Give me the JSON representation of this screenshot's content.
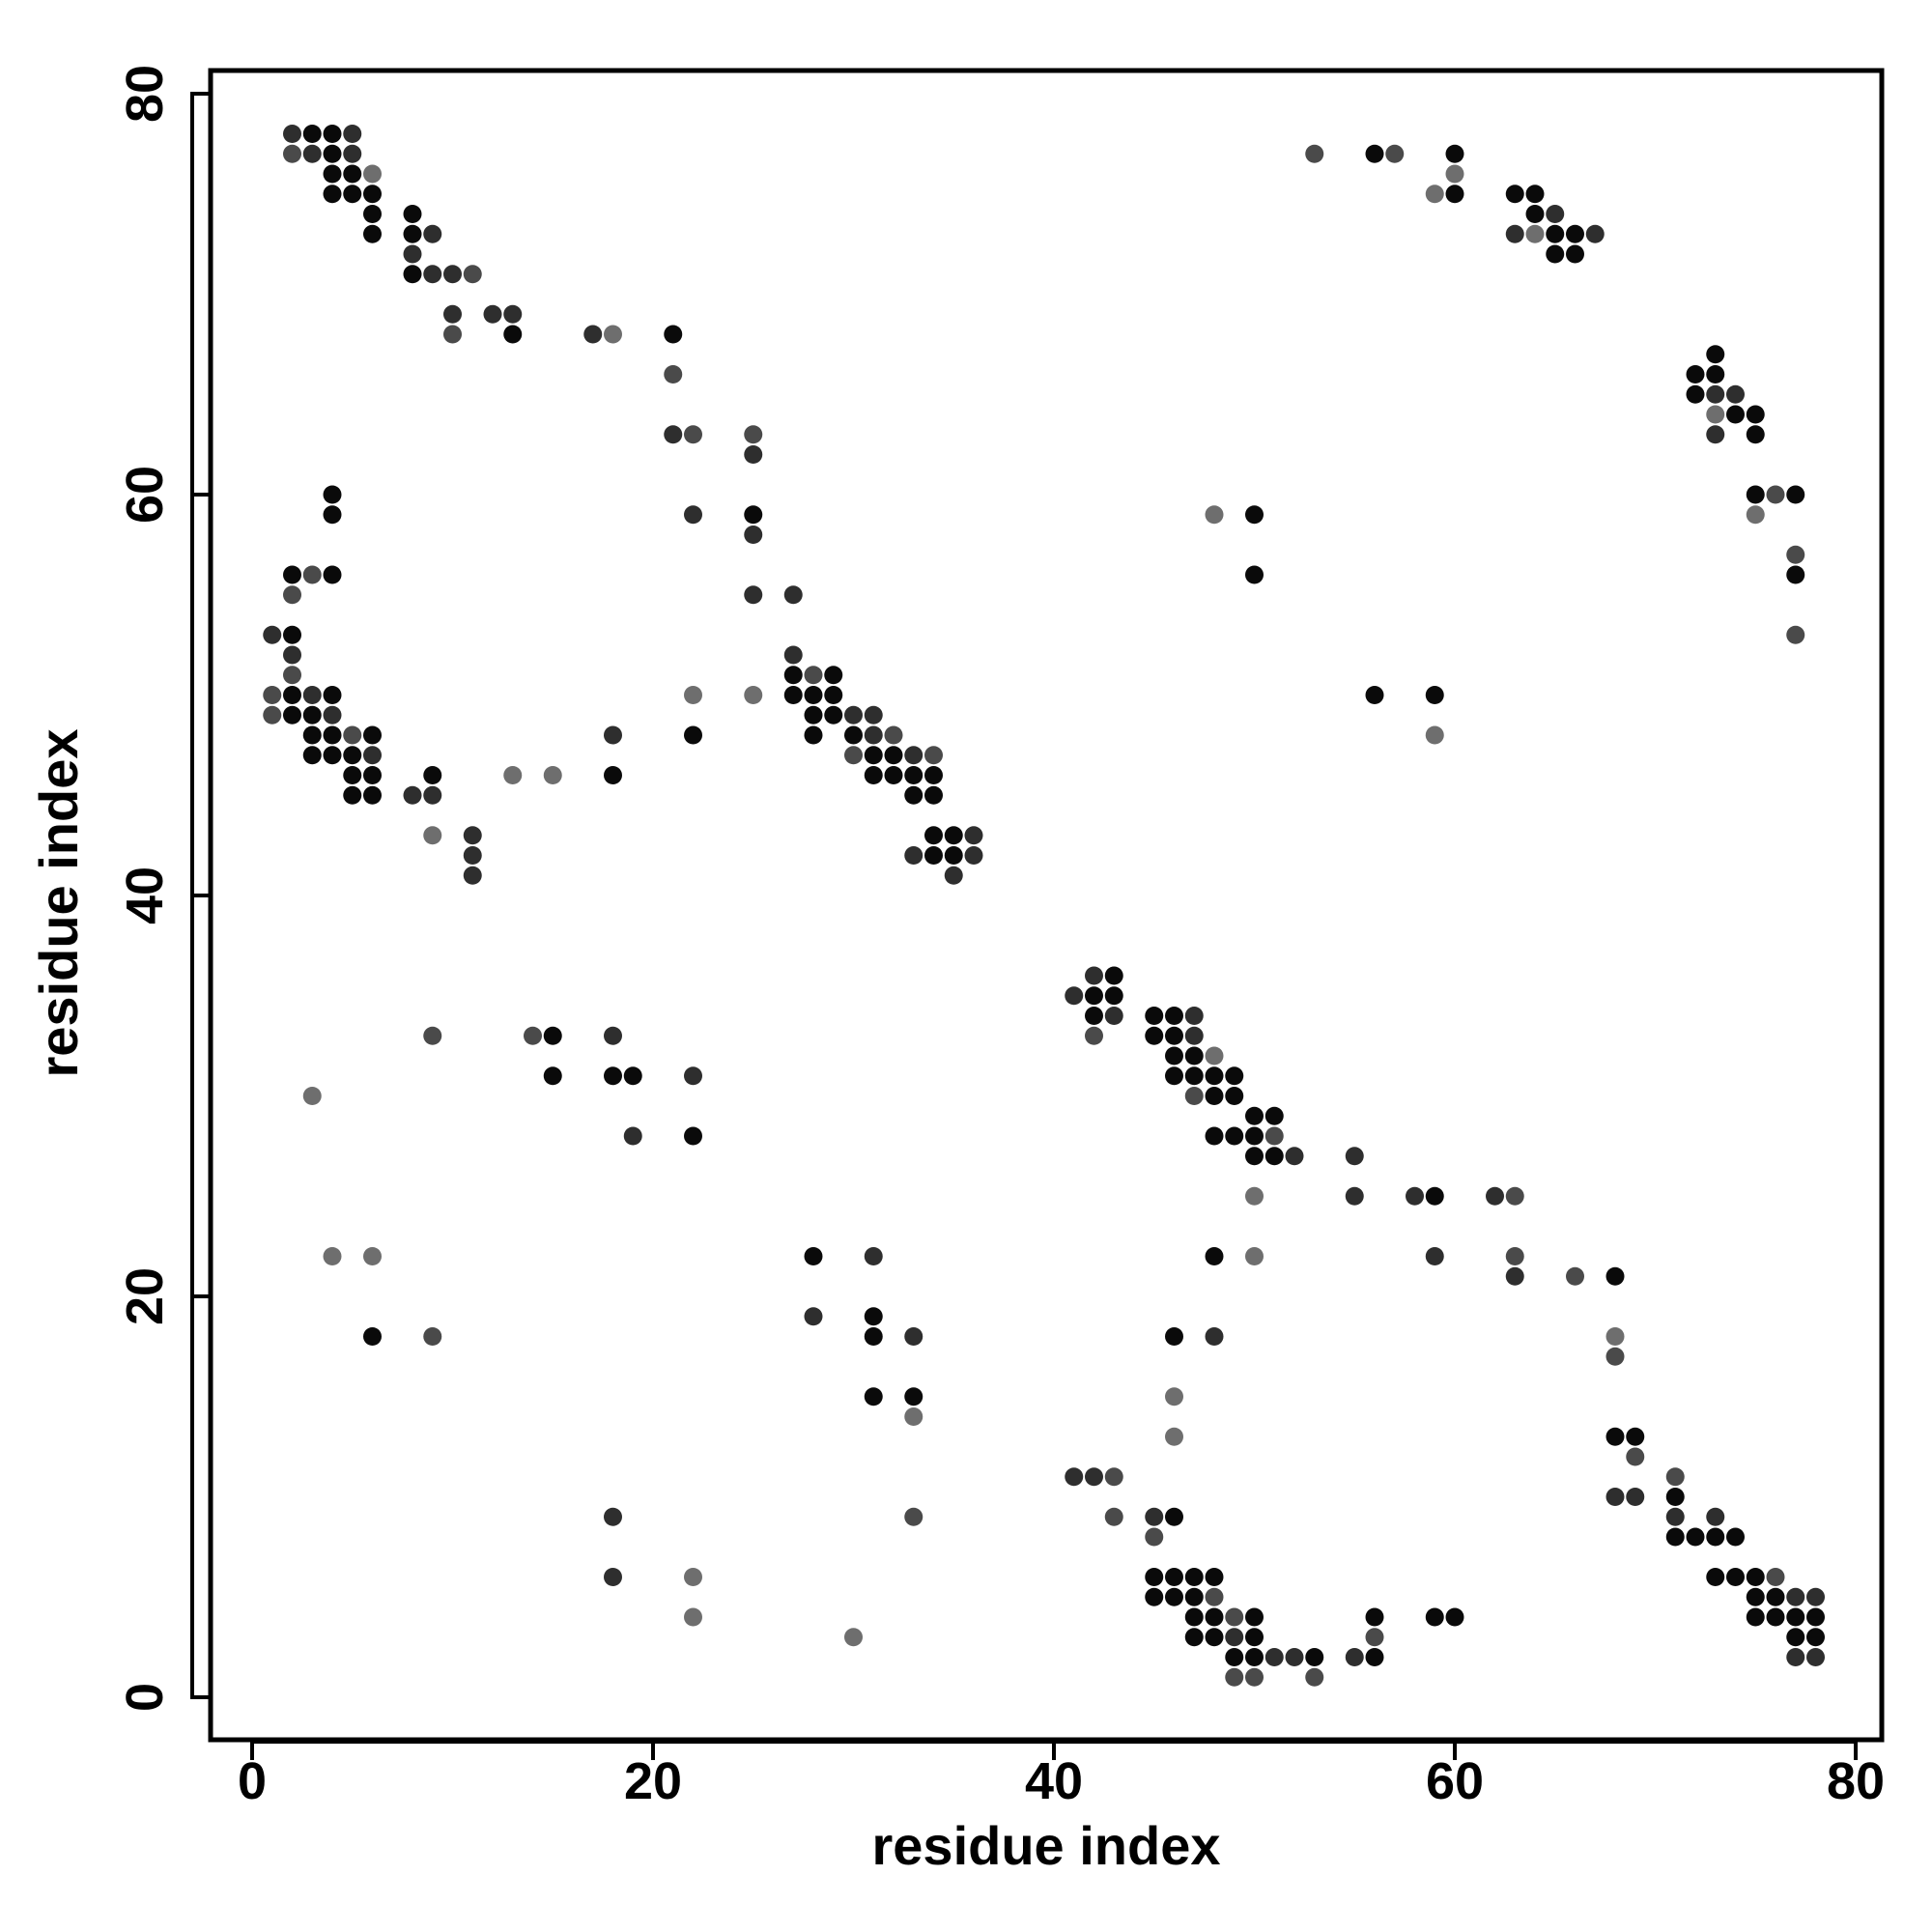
{
  "chart_data": {
    "type": "scatter",
    "xlabel": "residue index",
    "ylabel": "residue index",
    "xlim": [
      -2,
      81
    ],
    "ylim": [
      -2,
      81
    ],
    "x_ticks": [
      0,
      20,
      40,
      60,
      80
    ],
    "y_ticks": [
      0,
      20,
      40,
      60,
      80
    ],
    "x_tick_labels": [
      "0",
      "20",
      "40",
      "60",
      "80"
    ],
    "y_tick_labels": [
      "0",
      "20",
      "40",
      "60",
      "80"
    ],
    "grid": false,
    "legend": "none",
    "marker_color_scale": "grayscale (black = strong contact, gray = weak contact)",
    "contacts": [
      [
        2,
        78,
        1
      ],
      [
        3,
        78,
        0
      ],
      [
        4,
        78,
        0
      ],
      [
        5,
        78,
        1
      ],
      [
        2,
        77,
        2
      ],
      [
        3,
        77,
        1
      ],
      [
        4,
        77,
        0
      ],
      [
        5,
        77,
        1
      ],
      [
        4,
        76,
        0
      ],
      [
        5,
        76,
        0
      ],
      [
        6,
        76,
        3
      ],
      [
        4,
        75,
        0
      ],
      [
        5,
        75,
        0
      ],
      [
        6,
        75,
        0
      ],
      [
        6,
        74,
        0
      ],
      [
        6,
        73,
        0
      ],
      [
        8,
        74,
        0
      ],
      [
        8,
        73,
        0
      ],
      [
        9,
        73,
        1
      ],
      [
        8,
        72,
        1
      ],
      [
        8,
        71,
        0
      ],
      [
        9,
        71,
        1
      ],
      [
        10,
        71,
        1
      ],
      [
        11,
        71,
        2
      ],
      [
        10,
        69,
        1
      ],
      [
        12,
        69,
        1
      ],
      [
        13,
        69,
        1
      ],
      [
        10,
        68,
        2
      ],
      [
        13,
        68,
        0
      ],
      [
        17,
        68,
        1
      ],
      [
        18,
        68,
        3
      ],
      [
        21,
        68,
        0
      ],
      [
        21,
        66,
        2
      ],
      [
        21,
        63,
        1
      ],
      [
        22,
        63,
        2
      ],
      [
        22,
        59,
        1
      ],
      [
        25,
        63,
        2
      ],
      [
        25,
        62,
        1
      ],
      [
        25,
        59,
        0
      ],
      [
        25,
        58,
        1
      ],
      [
        25,
        55,
        1
      ],
      [
        27,
        55,
        1
      ],
      [
        4,
        60,
        0
      ],
      [
        4,
        59,
        0
      ],
      [
        2,
        56,
        0
      ],
      [
        3,
        56,
        2
      ],
      [
        4,
        56,
        0
      ],
      [
        2,
        55,
        2
      ],
      [
        1,
        53,
        1
      ],
      [
        2,
        53,
        0
      ],
      [
        2,
        52,
        1
      ],
      [
        2,
        51,
        2
      ],
      [
        1,
        50,
        2
      ],
      [
        2,
        50,
        0
      ],
      [
        3,
        50,
        1
      ],
      [
        4,
        50,
        0
      ],
      [
        1,
        49,
        2
      ],
      [
        2,
        49,
        0
      ],
      [
        3,
        49,
        0
      ],
      [
        4,
        49,
        1
      ],
      [
        3,
        48,
        0
      ],
      [
        4,
        48,
        0
      ],
      [
        5,
        48,
        2
      ],
      [
        6,
        48,
        0
      ],
      [
        3,
        47,
        0
      ],
      [
        4,
        47,
        0
      ],
      [
        5,
        47,
        0
      ],
      [
        6,
        47,
        1
      ],
      [
        5,
        46,
        0
      ],
      [
        6,
        46,
        0
      ],
      [
        5,
        45,
        0
      ],
      [
        6,
        45,
        0
      ],
      [
        8,
        45,
        1
      ],
      [
        9,
        45,
        1
      ],
      [
        9,
        46,
        0
      ],
      [
        9,
        43,
        3
      ],
      [
        11,
        43,
        1
      ],
      [
        11,
        42,
        1
      ],
      [
        11,
        41,
        1
      ],
      [
        13,
        46,
        3
      ],
      [
        15,
        46,
        3
      ],
      [
        18,
        48,
        1
      ],
      [
        18,
        46,
        0
      ],
      [
        22,
        50,
        3
      ],
      [
        22,
        48,
        0
      ],
      [
        25,
        50,
        3
      ],
      [
        27,
        52,
        1
      ],
      [
        27,
        51,
        0
      ],
      [
        28,
        51,
        2
      ],
      [
        29,
        51,
        0
      ],
      [
        27,
        50,
        0
      ],
      [
        28,
        50,
        0
      ],
      [
        29,
        50,
        0
      ],
      [
        28,
        49,
        0
      ],
      [
        29,
        49,
        0
      ],
      [
        30,
        49,
        1
      ],
      [
        31,
        49,
        1
      ],
      [
        28,
        48,
        0
      ],
      [
        30,
        48,
        0
      ],
      [
        31,
        48,
        1
      ],
      [
        32,
        48,
        2
      ],
      [
        30,
        47,
        2
      ],
      [
        31,
        47,
        0
      ],
      [
        32,
        47,
        0
      ],
      [
        33,
        47,
        1
      ],
      [
        34,
        47,
        2
      ],
      [
        31,
        46,
        0
      ],
      [
        32,
        46,
        0
      ],
      [
        33,
        46,
        0
      ],
      [
        34,
        46,
        0
      ],
      [
        33,
        45,
        0
      ],
      [
        34,
        45,
        0
      ],
      [
        34,
        43,
        0
      ],
      [
        35,
        43,
        0
      ],
      [
        36,
        43,
        1
      ],
      [
        33,
        42,
        1
      ],
      [
        34,
        42,
        0
      ],
      [
        35,
        42,
        0
      ],
      [
        36,
        42,
        1
      ],
      [
        35,
        41,
        1
      ],
      [
        53,
        77,
        2
      ],
      [
        56,
        77,
        0
      ],
      [
        57,
        77,
        2
      ],
      [
        60,
        77,
        0
      ],
      [
        59,
        75,
        3
      ],
      [
        60,
        76,
        3
      ],
      [
        60,
        75,
        0
      ],
      [
        63,
        75,
        0
      ],
      [
        64,
        75,
        0
      ],
      [
        64,
        74,
        0
      ],
      [
        65,
        74,
        1
      ],
      [
        63,
        73,
        1
      ],
      [
        64,
        73,
        3
      ],
      [
        65,
        73,
        0
      ],
      [
        66,
        73,
        0
      ],
      [
        67,
        73,
        1
      ],
      [
        65,
        72,
        0
      ],
      [
        66,
        72,
        0
      ],
      [
        73,
        67,
        0
      ],
      [
        72,
        66,
        0
      ],
      [
        73,
        66,
        0
      ],
      [
        72,
        65,
        0
      ],
      [
        73,
        65,
        1
      ],
      [
        74,
        65,
        1
      ],
      [
        73,
        64,
        3
      ],
      [
        74,
        64,
        0
      ],
      [
        75,
        64,
        0
      ],
      [
        73,
        63,
        1
      ],
      [
        75,
        63,
        0
      ],
      [
        75,
        60,
        0
      ],
      [
        76,
        60,
        2
      ],
      [
        77,
        60,
        0
      ],
      [
        75,
        59,
        3
      ],
      [
        77,
        57,
        2
      ],
      [
        77,
        56,
        0
      ],
      [
        77,
        53,
        2
      ],
      [
        48,
        59,
        3
      ],
      [
        50,
        59,
        0
      ],
      [
        50,
        56,
        0
      ],
      [
        56,
        50,
        0
      ],
      [
        59,
        50,
        0
      ],
      [
        59,
        48,
        3
      ],
      [
        3,
        30,
        3
      ],
      [
        9,
        33,
        2
      ],
      [
        14,
        33,
        2
      ],
      [
        15,
        33,
        0
      ],
      [
        15,
        31,
        0
      ],
      [
        18,
        33,
        1
      ],
      [
        18,
        31,
        0
      ],
      [
        19,
        31,
        0
      ],
      [
        19,
        28,
        1
      ],
      [
        22,
        31,
        1
      ],
      [
        22,
        28,
        0
      ],
      [
        4,
        22,
        3
      ],
      [
        6,
        22,
        3
      ],
      [
        6,
        18,
        0
      ],
      [
        9,
        18,
        2
      ],
      [
        28,
        22,
        0
      ],
      [
        31,
        22,
        1
      ],
      [
        28,
        19,
        1
      ],
      [
        31,
        19,
        0
      ],
      [
        31,
        18,
        0
      ],
      [
        33,
        18,
        1
      ],
      [
        31,
        15,
        0
      ],
      [
        33,
        15,
        0
      ],
      [
        33,
        14,
        3
      ],
      [
        18,
        9,
        1
      ],
      [
        18,
        6,
        1
      ],
      [
        22,
        6,
        3
      ],
      [
        22,
        4,
        3
      ],
      [
        30,
        3,
        3
      ],
      [
        33,
        9,
        2
      ],
      [
        41,
        35,
        1
      ],
      [
        42,
        36,
        1
      ],
      [
        43,
        36,
        0
      ],
      [
        42,
        35,
        0
      ],
      [
        43,
        35,
        0
      ],
      [
        42,
        34,
        0
      ],
      [
        43,
        34,
        1
      ],
      [
        42,
        33,
        2
      ],
      [
        45,
        34,
        0
      ],
      [
        46,
        34,
        0
      ],
      [
        47,
        34,
        1
      ],
      [
        45,
        33,
        0
      ],
      [
        46,
        33,
        0
      ],
      [
        47,
        33,
        1
      ],
      [
        46,
        32,
        0
      ],
      [
        47,
        32,
        0
      ],
      [
        48,
        32,
        3
      ],
      [
        46,
        31,
        0
      ],
      [
        47,
        31,
        0
      ],
      [
        48,
        31,
        0
      ],
      [
        49,
        31,
        0
      ],
      [
        47,
        30,
        2
      ],
      [
        48,
        30,
        0
      ],
      [
        49,
        30,
        0
      ],
      [
        48,
        28,
        0
      ],
      [
        49,
        28,
        0
      ],
      [
        50,
        28,
        0
      ],
      [
        50,
        29,
        0
      ],
      [
        51,
        29,
        0
      ],
      [
        51,
        28,
        2
      ],
      [
        50,
        27,
        0
      ],
      [
        51,
        27,
        0
      ],
      [
        52,
        27,
        1
      ],
      [
        55,
        27,
        1
      ],
      [
        55,
        25,
        1
      ],
      [
        58,
        25,
        1
      ],
      [
        59,
        25,
        0
      ],
      [
        62,
        25,
        1
      ],
      [
        63,
        25,
        2
      ],
      [
        50,
        25,
        3
      ],
      [
        48,
        22,
        0
      ],
      [
        50,
        22,
        3
      ],
      [
        59,
        22,
        1
      ],
      [
        63,
        22,
        2
      ],
      [
        63,
        21,
        1
      ],
      [
        66,
        21,
        2
      ],
      [
        68,
        21,
        0
      ],
      [
        46,
        18,
        0
      ],
      [
        48,
        18,
        1
      ],
      [
        46,
        15,
        3
      ],
      [
        46,
        13,
        3
      ],
      [
        68,
        18,
        3
      ],
      [
        68,
        17,
        2
      ],
      [
        68,
        13,
        0
      ],
      [
        69,
        13,
        0
      ],
      [
        69,
        12,
        2
      ],
      [
        68,
        10,
        1
      ],
      [
        69,
        10,
        1
      ],
      [
        71,
        11,
        2
      ],
      [
        71,
        10,
        0
      ],
      [
        71,
        9,
        1
      ],
      [
        71,
        8,
        0
      ],
      [
        72,
        8,
        0
      ],
      [
        73,
        9,
        1
      ],
      [
        73,
        8,
        0
      ],
      [
        74,
        8,
        0
      ],
      [
        73,
        6,
        0
      ],
      [
        74,
        6,
        0
      ],
      [
        75,
        6,
        0
      ],
      [
        76,
        6,
        2
      ],
      [
        75,
        5,
        0
      ],
      [
        76,
        5,
        0
      ],
      [
        77,
        5,
        1
      ],
      [
        78,
        5,
        1
      ],
      [
        75,
        4,
        0
      ],
      [
        76,
        4,
        0
      ],
      [
        77,
        4,
        0
      ],
      [
        78,
        4,
        0
      ],
      [
        77,
        3,
        0
      ],
      [
        78,
        3,
        0
      ],
      [
        77,
        2,
        1
      ],
      [
        78,
        2,
        1
      ],
      [
        41,
        11,
        1
      ],
      [
        42,
        11,
        1
      ],
      [
        43,
        11,
        2
      ],
      [
        43,
        9,
        2
      ],
      [
        45,
        9,
        1
      ],
      [
        46,
        9,
        0
      ],
      [
        45,
        8,
        2
      ],
      [
        45,
        6,
        0
      ],
      [
        46,
        6,
        0
      ],
      [
        47,
        6,
        0
      ],
      [
        48,
        6,
        0
      ],
      [
        45,
        5,
        0
      ],
      [
        46,
        5,
        0
      ],
      [
        47,
        5,
        0
      ],
      [
        48,
        5,
        2
      ],
      [
        47,
        4,
        0
      ],
      [
        48,
        4,
        0
      ],
      [
        49,
        4,
        2
      ],
      [
        50,
        4,
        0
      ],
      [
        47,
        3,
        0
      ],
      [
        48,
        3,
        0
      ],
      [
        49,
        3,
        1
      ],
      [
        50,
        3,
        0
      ],
      [
        49,
        2,
        0
      ],
      [
        50,
        2,
        0
      ],
      [
        51,
        2,
        1
      ],
      [
        52,
        2,
        1
      ],
      [
        53,
        2,
        0
      ],
      [
        49,
        1,
        2
      ],
      [
        50,
        1,
        2
      ],
      [
        53,
        1,
        2
      ],
      [
        55,
        2,
        1
      ],
      [
        56,
        2,
        0
      ],
      [
        56,
        4,
        0
      ],
      [
        56,
        3,
        2
      ],
      [
        59,
        4,
        0
      ],
      [
        60,
        4,
        0
      ]
    ],
    "shade_palette": [
      "#0a0a0a",
      "#2e2e2e",
      "#4a4a4a",
      "#6e6e6e"
    ]
  }
}
